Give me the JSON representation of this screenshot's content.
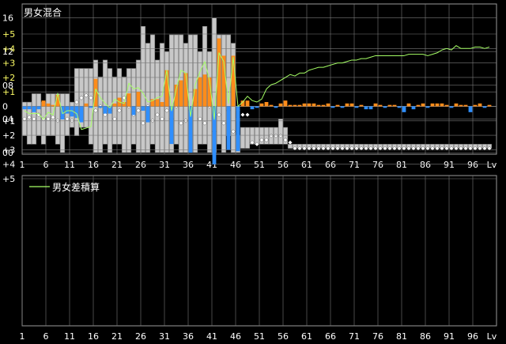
{
  "colors": {
    "background": "#000000",
    "panel_border": "#9a9a9a",
    "grid": "#7a7a7a",
    "axis_text": "#ffffff",
    "negative_axis_text": "#ffff66",
    "range_bar_fill": "#c8c8c8",
    "range_bar_stroke": "#6e6e6e",
    "average_marker": "#ffffff",
    "male_bar": "#2f8fff",
    "female_bar": "#ff8c1a",
    "cumulative_line": "#a6ff66"
  },
  "chart_data": [
    {
      "type": "range-bar",
      "title": "男女混合",
      "x_axis_suffix": "Lv",
      "x_ticks": [
        "1",
        "6",
        "11",
        "16",
        "21",
        "26",
        "31",
        "36",
        "41",
        "46",
        "51",
        "56",
        "61",
        "66",
        "71",
        "76",
        "81",
        "86",
        "91",
        "96"
      ],
      "y_ticks": [
        "00",
        "04",
        "08",
        "12",
        "16"
      ],
      "ylim": [
        0,
        17
      ],
      "x": [
        1,
        2,
        3,
        4,
        5,
        6,
        7,
        8,
        9,
        10,
        11,
        12,
        13,
        14,
        15,
        16,
        17,
        18,
        19,
        20,
        21,
        22,
        23,
        24,
        25,
        26,
        27,
        28,
        29,
        30,
        31,
        32,
        33,
        34,
        35,
        36,
        37,
        38,
        39,
        40,
        41,
        42,
        43,
        44,
        45,
        46,
        47,
        48,
        49,
        50,
        51,
        52,
        53,
        54,
        55,
        56,
        57,
        58,
        59,
        60,
        61,
        62,
        63,
        64,
        65,
        66,
        67,
        68,
        69,
        70,
        71,
        72,
        73,
        74,
        75,
        76,
        77,
        78,
        79,
        80,
        81,
        82,
        83,
        84,
        85,
        86,
        87,
        88,
        89,
        90,
        91,
        92,
        93,
        94,
        95,
        96,
        97,
        98,
        99
      ],
      "min": [
        2,
        1,
        1,
        2,
        1,
        2,
        2,
        1,
        0,
        2,
        3,
        2,
        3,
        3,
        1,
        0,
        0,
        1,
        0,
        1,
        1,
        0,
        0,
        1,
        0,
        0,
        0,
        1,
        0,
        0,
        0,
        0,
        1,
        0,
        0,
        0,
        0,
        1,
        1,
        0,
        0,
        1,
        0,
        2,
        0,
        0,
        0.5,
        0.5,
        1,
        1,
        1,
        1,
        1,
        1,
        1,
        1,
        0.5,
        0.5,
        0.5,
        0.5,
        0.5,
        0.5,
        0.5,
        0.5,
        0.5,
        0.5,
        0.5,
        0.5,
        0.5,
        0.5,
        0.5,
        0.5,
        0.5,
        0.5,
        0.5,
        0.5,
        0.5,
        0.5,
        0.5,
        0.5,
        0.5,
        0.5,
        0.5,
        0.5,
        0.5,
        0.5,
        0.5,
        0.5,
        0.5,
        0.5,
        0.5,
        0.5,
        0.5,
        0.5,
        0.5,
        0.5,
        0.5,
        0.5,
        0.5
      ],
      "max": [
        6,
        6,
        7,
        7,
        6,
        7,
        7,
        7,
        7,
        7,
        6,
        10,
        10,
        10,
        10,
        11,
        9,
        11,
        10,
        9,
        10,
        9,
        10,
        10,
        11,
        15,
        13,
        14,
        11,
        13,
        12,
        14,
        14,
        14,
        13,
        14,
        14,
        12,
        15,
        12,
        16,
        14,
        14,
        14,
        13,
        2,
        3,
        3,
        3,
        3,
        3,
        3,
        3,
        3,
        4,
        3,
        1,
        1,
        1,
        1,
        1,
        1,
        1,
        1,
        1,
        1,
        1,
        1,
        1,
        1,
        1,
        1,
        1,
        1,
        1,
        1,
        1,
        1,
        1,
        1,
        1,
        1,
        1,
        1,
        1,
        1,
        1,
        1,
        1,
        1,
        1,
        1,
        1,
        1,
        1,
        1,
        1,
        1,
        1
      ],
      "avg": [
        4,
        4.2,
        4,
        4.5,
        4,
        4,
        4.2,
        3.8,
        4.3,
        4,
        3.8,
        6,
        6.5,
        6.8,
        6.5,
        5,
        5.5,
        4.5,
        5,
        4,
        5,
        6.5,
        5.5,
        4.5,
        5,
        3.5,
        5.5,
        3.8,
        4.5,
        4,
        5,
        4,
        5.5,
        3.5,
        3.8,
        5,
        6,
        4,
        3.5,
        5.5,
        2.5,
        4.5,
        3.5,
        5,
        2.5,
        5,
        4.5,
        4.5,
        1.2,
        1,
        1.5,
        1.5,
        2,
        2,
        2,
        1.5,
        1.2,
        0.5,
        0.5,
        0.5,
        0.5,
        0.5,
        0.5,
        0.5,
        0.5,
        0.5,
        0.5,
        0.5,
        0.5,
        0.5,
        0.5,
        0.5,
        0.5,
        0.5,
        0.5,
        0.5,
        0.5,
        0.5,
        0.5,
        0.5,
        0.5,
        0.5,
        0.5,
        0.5,
        0.5,
        0.5,
        0.5,
        0.5,
        0.5,
        0.5,
        0.5,
        0.5,
        0.5,
        0.5,
        0.5,
        0.5,
        0.5,
        0.5,
        0.5
      ]
    },
    {
      "type": "bar+line",
      "legend": "男女差積算",
      "x_axis_suffix": "Lv",
      "x_ticks": [
        "1",
        "6",
        "11",
        "16",
        "21",
        "26",
        "31",
        "36",
        "41",
        "46",
        "51",
        "56",
        "61",
        "66",
        "71",
        "76",
        "81",
        "86",
        "91",
        "96"
      ],
      "y_ticks": [
        "+5",
        "+4",
        "+3",
        "+2",
        "+1",
        "0",
        "+1",
        "+2",
        "+3",
        "+4",
        "+5"
      ],
      "ylim": [
        -5,
        5
      ],
      "x": [
        1,
        2,
        3,
        4,
        5,
        6,
        7,
        8,
        9,
        10,
        11,
        12,
        13,
        14,
        15,
        16,
        17,
        18,
        19,
        20,
        21,
        22,
        23,
        24,
        25,
        26,
        27,
        28,
        29,
        30,
        31,
        32,
        33,
        34,
        35,
        36,
        37,
        38,
        39,
        40,
        41,
        42,
        43,
        44,
        45,
        46,
        47,
        48,
        49,
        50,
        51,
        52,
        53,
        54,
        55,
        56,
        57,
        58,
        59,
        60,
        61,
        62,
        63,
        64,
        65,
        66,
        67,
        68,
        69,
        70,
        71,
        72,
        73,
        74,
        75,
        76,
        77,
        78,
        79,
        80,
        81,
        82,
        83,
        84,
        85,
        86,
        87,
        88,
        89,
        90,
        91,
        92,
        93,
        94,
        95,
        96,
        97,
        98,
        99
      ],
      "bars": [
        0.2,
        0.2,
        0.4,
        0.2,
        -0.4,
        -0.2,
        -0.1,
        -0.8,
        0.9,
        0.5,
        0.7,
        0.8,
        1.1,
        -0.2,
        0.1,
        -1.9,
        0.1,
        0.5,
        0.5,
        -0.2,
        -0.6,
        -0.3,
        -0.9,
        0.6,
        -1,
        0.3,
        1.1,
        -0.5,
        -0.5,
        -0.3,
        -2.5,
        2.6,
        -1.5,
        -1.8,
        -2.3,
        3.2,
        -1.2,
        -2,
        -2.2,
        -2,
        4,
        -4.7,
        -3.5,
        3,
        -3.5,
        3.1,
        -0.4,
        -0.4,
        0.2,
        0.1,
        -0.2,
        -0.3,
        -0.1,
        0.1,
        -0.2,
        -0.4,
        -0.1,
        -0.1,
        -0.1,
        -0.2,
        -0.2,
        -0.2,
        -0.1,
        -0.1,
        -0.2,
        0.1,
        -0.1,
        0.1,
        -0.2,
        -0.2,
        0.1,
        -0.1,
        0.2,
        0.2,
        -0.2,
        -0.1,
        0.1,
        -0.1,
        -0.1,
        0.1,
        0.4,
        -0.2,
        0.2,
        -0.1,
        -0.2,
        0.1,
        -0.2,
        -0.2,
        -0.2,
        -0.1,
        0.1,
        -0.2,
        -0.1,
        -0.1,
        0.4,
        -0.1,
        -0.2,
        0.1,
        -0.1
      ],
      "line": [
        0.3,
        0.5,
        0.5,
        0.5,
        0.9,
        0.4,
        0.6,
        -0.9,
        0.5,
        0.3,
        0.3,
        0.5,
        1.6,
        1.5,
        1.4,
        -1.2,
        -0.6,
        -0.2,
        0.1,
        -0.5,
        -0.3,
        -0.2,
        -1.6,
        -1.2,
        -1.3,
        -0.9,
        -0.3,
        -0.4,
        -0.6,
        -0.7,
        -2.5,
        0.3,
        -1.2,
        -2.5,
        -2.3,
        0.7,
        -1.5,
        -2.4,
        -3.1,
        -1.8,
        0.9,
        -3.7,
        -3.1,
        -0.2,
        -3.4,
        0,
        -0.3,
        -0.7,
        -0.4,
        -0.3,
        -0.5,
        -1.2,
        -1.5,
        -1.6,
        -1.8,
        -2,
        -2.2,
        -2.1,
        -2.3,
        -2.3,
        -2.5,
        -2.6,
        -2.7,
        -2.7,
        -2.8,
        -2.9,
        -3,
        -3,
        -3.1,
        -3.2,
        -3.2,
        -3.3,
        -3.3,
        -3.4,
        -3.5,
        -3.5,
        -3.5,
        -3.5,
        -3.5,
        -3.5,
        -3.5,
        -3.6,
        -3.6,
        -3.6,
        -3.6,
        -3.5,
        -3.6,
        -3.7,
        -3.9,
        -4,
        -3.9,
        -4.2,
        -4,
        -4,
        -4,
        -4.1,
        -4.1,
        -4,
        -4.1
      ]
    }
  ]
}
